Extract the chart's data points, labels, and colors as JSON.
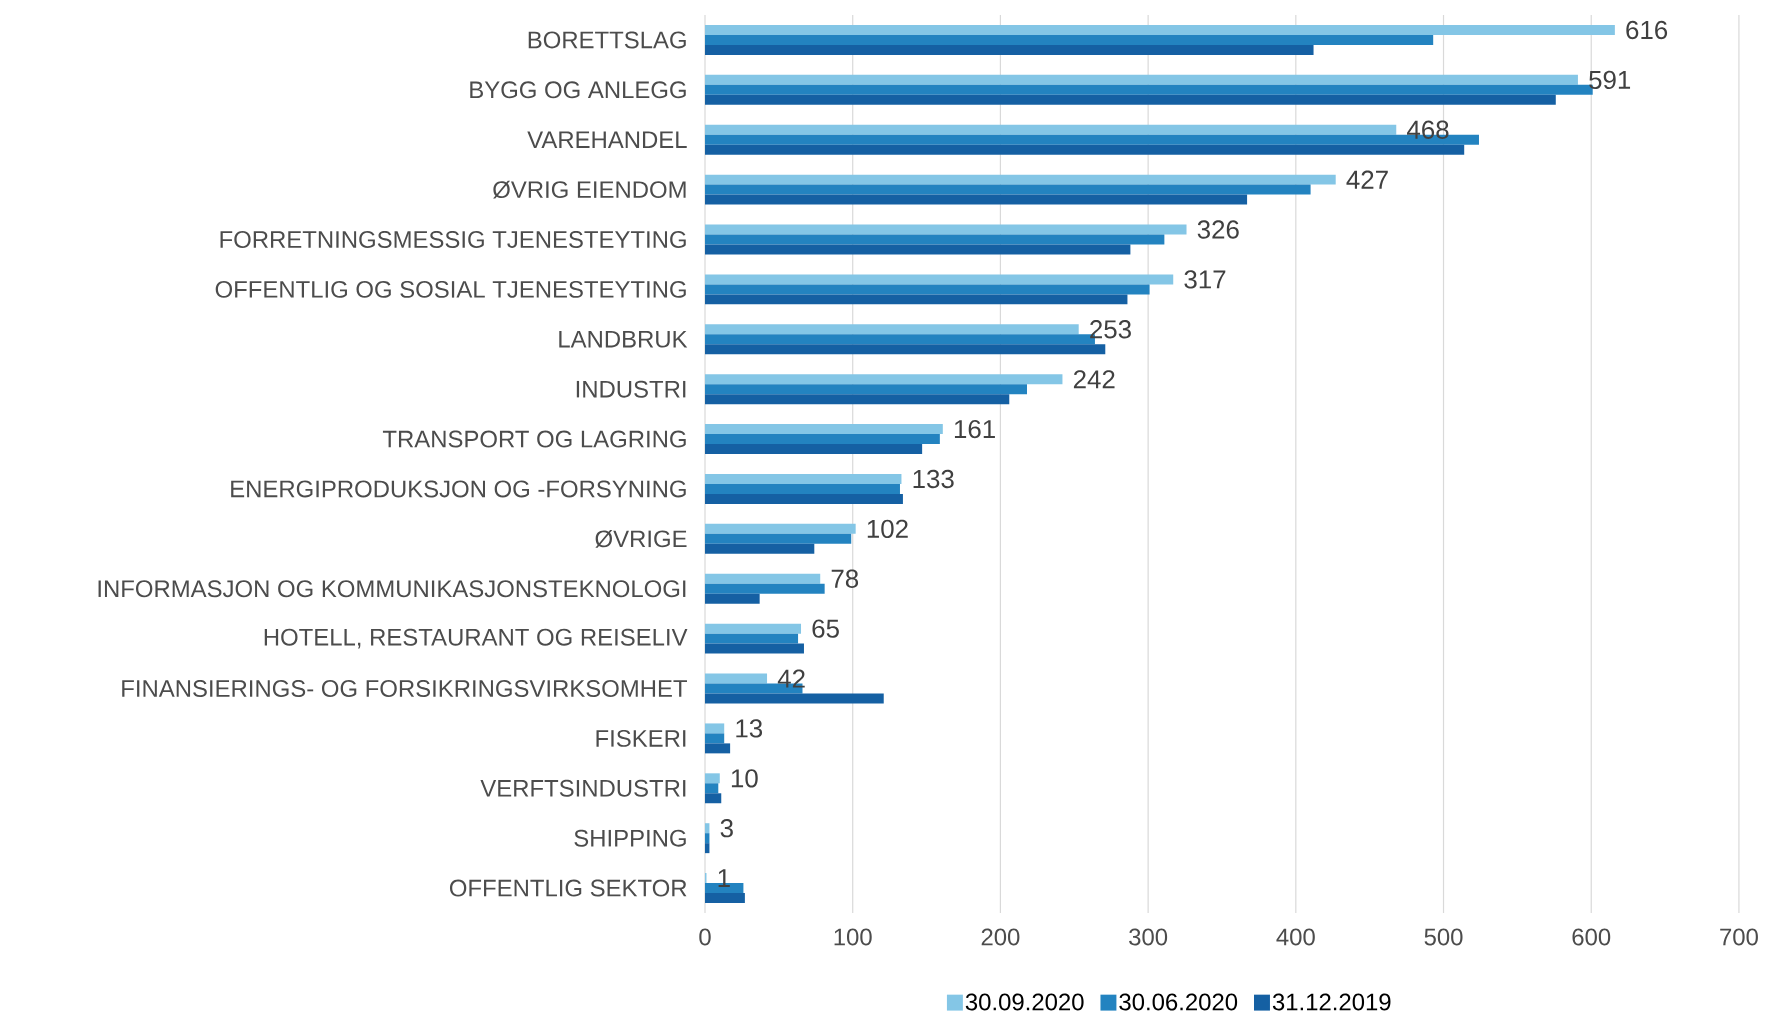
{
  "chart_data": {
    "type": "bar",
    "orientation": "horizontal",
    "categories": [
      "BORETTSLAG",
      "BYGG OG ANLEGG",
      "VAREHANDEL",
      "ØVRIG EIENDOM",
      "FORRETNINGSMESSIG TJENESTEYTING",
      "OFFENTLIG OG SOSIAL TJENESTEYTING",
      "LANDBRUK",
      "INDUSTRI",
      "TRANSPORT OG LAGRING",
      "ENERGIPRODUKSJON OG -FORSYNING",
      "ØVRIGE",
      "INFORMASJON OG KOMMUNIKASJONSTEKNOLOGI",
      "HOTELL, RESTAURANT OG REISELIV",
      "FINANSIERINGS- OG FORSIKRINGSVIRKSOMHET",
      "FISKERI",
      "VERFTSINDUSTRI",
      "SHIPPING",
      "OFFENTLIG SEKTOR"
    ],
    "series": [
      {
        "name": "30.09.2020",
        "color": "#84c6e6",
        "values": [
          616,
          591,
          468,
          427,
          326,
          317,
          253,
          242,
          161,
          133,
          102,
          78,
          65,
          42,
          13,
          10,
          3,
          1
        ],
        "value_labels": [
          "616",
          "591",
          "468",
          "427",
          "326",
          "317",
          "253",
          "242",
          "161",
          "133",
          "102",
          "78",
          "65",
          "42",
          "13",
          "10",
          "3",
          "1"
        ]
      },
      {
        "name": "30.06.2020",
        "color": "#2383c0",
        "values": [
          493,
          601,
          524,
          410,
          311,
          301,
          264,
          218,
          159,
          132,
          99,
          81,
          63,
          66,
          13,
          9,
          3,
          26
        ]
      },
      {
        "name": "31.12.2019",
        "color": "#1560a3",
        "values": [
          412,
          576,
          514,
          367,
          288,
          286,
          271,
          206,
          147,
          134,
          74,
          37,
          67,
          121,
          17,
          11,
          3,
          27
        ]
      }
    ],
    "xlim": [
      0,
      700
    ],
    "xticks": [
      0,
      100,
      200,
      300,
      400,
      500,
      600,
      700
    ],
    "grid": "x",
    "legend": "bottom"
  }
}
